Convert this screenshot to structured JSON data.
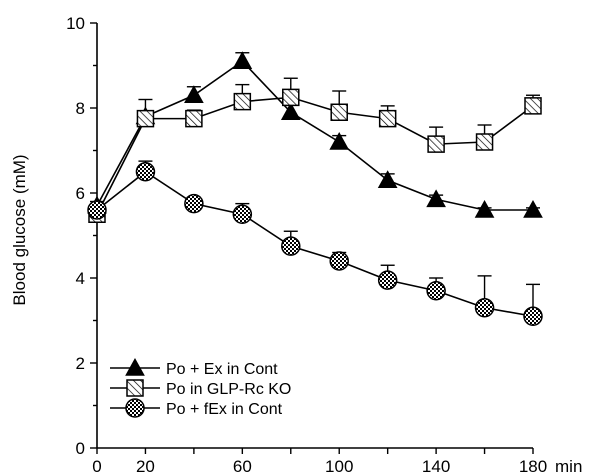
{
  "chart_data": {
    "type": "line",
    "title": "",
    "xlabel": "",
    "x_unit": "min",
    "ylabel": "Blood glucose (mM)",
    "xlim": [
      0,
      180
    ],
    "ylim": [
      0,
      10
    ],
    "x_ticks": [
      0,
      20,
      60,
      100,
      140,
      180
    ],
    "y_ticks": [
      0,
      2,
      4,
      6,
      8,
      10
    ],
    "grid": false,
    "legend_position": "bottom-left",
    "series": [
      {
        "name": "Po + Ex in Cont",
        "marker": "filled-triangle",
        "x": [
          0,
          20,
          40,
          60,
          80,
          100,
          120,
          140,
          160,
          180
        ],
        "values": [
          5.7,
          7.8,
          8.3,
          9.1,
          7.9,
          7.2,
          6.3,
          5.85,
          5.6,
          5.6
        ],
        "error": [
          0.1,
          0.1,
          0.2,
          0.2,
          0.2,
          0.15,
          0.15,
          0.1,
          0.05,
          0.05
        ]
      },
      {
        "name": "Po in GLP-Rc KO",
        "marker": "hatched-square",
        "x": [
          0,
          20,
          40,
          60,
          80,
          100,
          120,
          140,
          160,
          180
        ],
        "values": [
          5.5,
          7.75,
          7.75,
          8.15,
          8.25,
          7.9,
          7.75,
          7.15,
          7.2,
          8.05
        ],
        "error": [
          0.1,
          0.45,
          0.2,
          0.4,
          0.45,
          0.5,
          0.3,
          0.4,
          0.4,
          0.25
        ]
      },
      {
        "name": "Po + fEx in Cont",
        "marker": "checkered-circle",
        "x": [
          0,
          20,
          40,
          60,
          80,
          100,
          120,
          140,
          160,
          180
        ],
        "values": [
          5.6,
          6.5,
          5.75,
          5.5,
          4.75,
          4.4,
          3.95,
          3.7,
          3.3,
          3.1
        ],
        "error": [
          0.05,
          0.25,
          0.15,
          0.25,
          0.35,
          0.2,
          0.35,
          0.3,
          0.75,
          0.75
        ]
      }
    ]
  }
}
